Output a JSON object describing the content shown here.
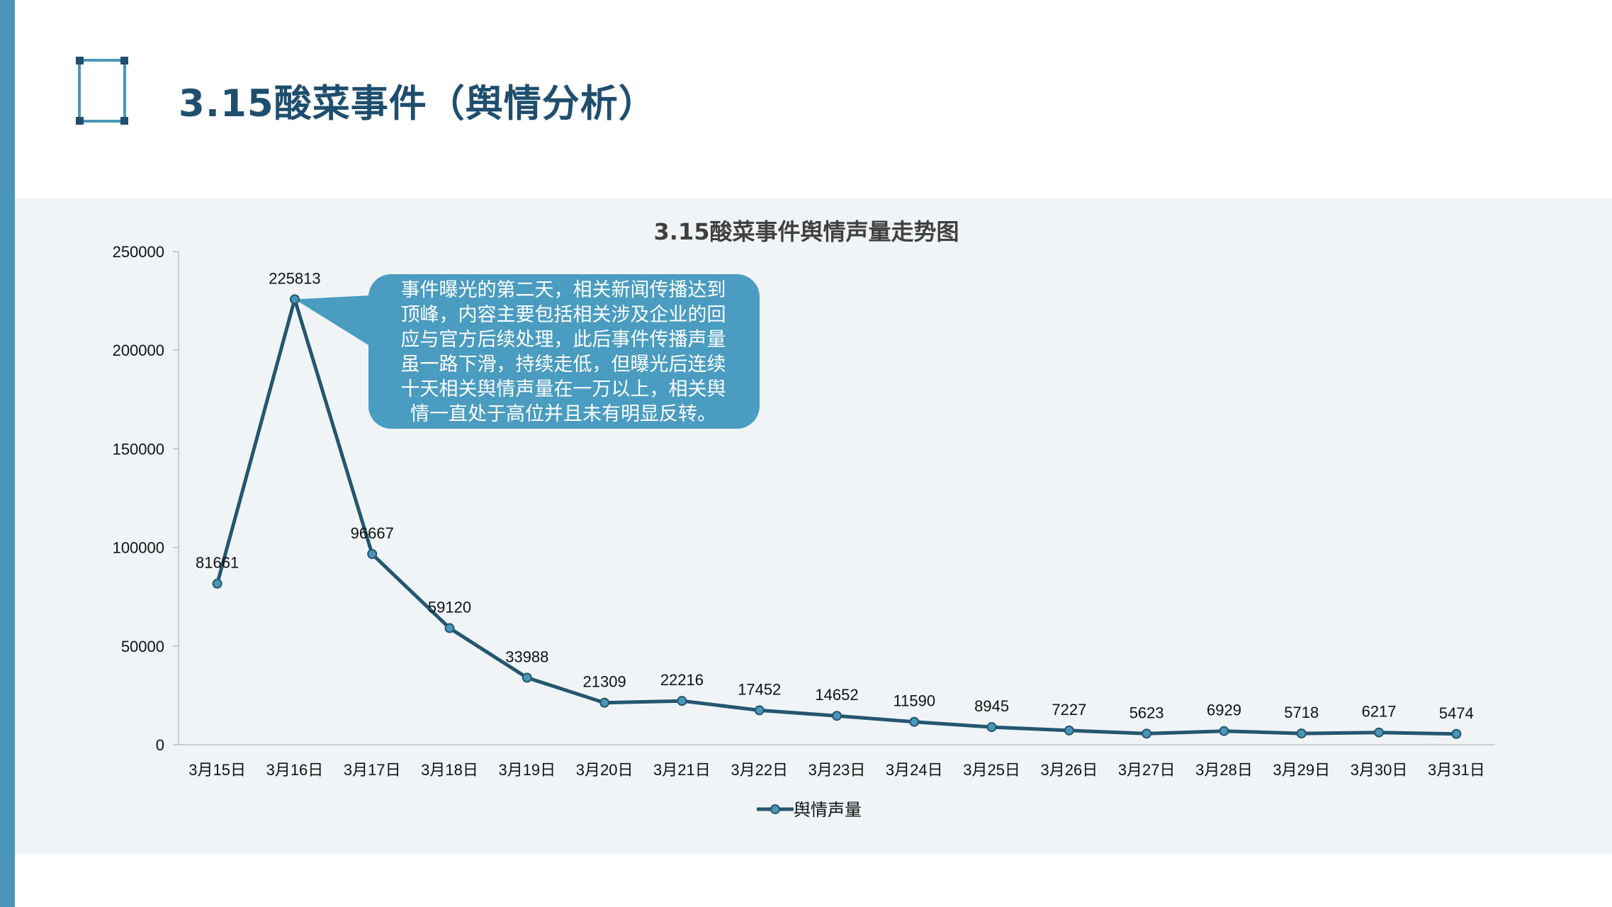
{
  "page": {
    "title": "3.15酸菜事件（舆情分析）",
    "accent_color": "#4a96b8",
    "title_color": "#1f4e6e",
    "icon": "bracket-frame-icon"
  },
  "chart_data": {
    "type": "line",
    "title": "3.15酸菜事件舆情声量走势图",
    "xlabel": "",
    "ylabel": "",
    "ylim": [
      0,
      250000
    ],
    "yticks": [
      0,
      50000,
      100000,
      150000,
      200000,
      250000
    ],
    "categories": [
      "3月15日",
      "3月16日",
      "3月17日",
      "3月18日",
      "3月19日",
      "3月20日",
      "3月21日",
      "3月22日",
      "3月23日",
      "3月24日",
      "3月25日",
      "3月26日",
      "3月27日",
      "3月28日",
      "3月29日",
      "3月30日",
      "3月31日"
    ],
    "series": [
      {
        "name": "舆情声量",
        "color": "#24566f",
        "marker_color": "#4a96b8",
        "values": [
          81661,
          225813,
          96667,
          59120,
          33988,
          21309,
          22216,
          17452,
          14652,
          11590,
          8945,
          7227,
          5623,
          6929,
          5718,
          6217,
          5474
        ]
      }
    ],
    "grid": false,
    "legend": "bottom",
    "annotation": {
      "text": "事件曝光的第二天，相关新闻传播达到顶峰，内容主要包括相关涉及企业的回应与官方后续处理，此后事件传播声量虽一路下滑，持续走低，但曝光后连续十天相关舆情声量在一万以上，相关舆情一直处于高位并且未有明显反转。",
      "lines": [
        "事件曝光的第二天，相关新闻传播达到",
        "顶峰，内容主要包括相关涉及企业的回",
        "应与官方后续处理，此后事件传播声量",
        "虽一路下滑，持续走低，但曝光后连续",
        "十天相关舆情声量在一万以上，相关舆",
        "情一直处于高位并且未有明显反转。"
      ],
      "points_to": "3月16日",
      "background": "#4a9cc0"
    }
  }
}
